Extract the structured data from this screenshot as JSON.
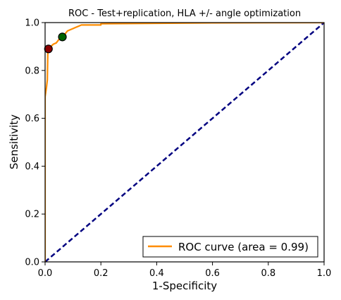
{
  "chart_data": {
    "type": "line",
    "title": "ROC - Test+replication, HLA +/- angle optimization",
    "xlabel": "1-Specificity",
    "ylabel": "Sensitivity",
    "xlim": [
      0.0,
      1.0
    ],
    "ylim": [
      0.0,
      1.0
    ],
    "xticks": [
      "0.0",
      "0.2",
      "0.4",
      "0.6",
      "0.8",
      "1.0"
    ],
    "yticks": [
      "0.0",
      "0.2",
      "0.4",
      "0.6",
      "0.8",
      "1.0"
    ],
    "grid": false,
    "legend_position": "lower-right",
    "series": [
      {
        "name": "ROC curve (area = 0.99)",
        "color": "#ff8c00",
        "style": "solid",
        "points": [
          [
            0.0,
            0.0
          ],
          [
            0.0,
            0.69
          ],
          [
            0.005,
            0.73
          ],
          [
            0.008,
            0.76
          ],
          [
            0.01,
            0.89
          ],
          [
            0.02,
            0.9
          ],
          [
            0.03,
            0.91
          ],
          [
            0.04,
            0.915
          ],
          [
            0.05,
            0.93
          ],
          [
            0.06,
            0.94
          ],
          [
            0.07,
            0.95
          ],
          [
            0.08,
            0.965
          ],
          [
            0.09,
            0.97
          ],
          [
            0.1,
            0.975
          ],
          [
            0.11,
            0.98
          ],
          [
            0.12,
            0.985
          ],
          [
            0.13,
            0.99
          ],
          [
            0.2,
            0.99
          ],
          [
            0.2,
            0.995
          ],
          [
            0.4,
            0.997
          ],
          [
            0.6,
            0.999
          ],
          [
            1.0,
            1.0
          ]
        ]
      },
      {
        "color": "#000080",
        "style": "dashed",
        "points": [
          [
            0.0,
            0.0
          ],
          [
            1.0,
            1.0
          ]
        ]
      }
    ],
    "markers": [
      {
        "x": 0.012,
        "y": 0.89,
        "color": "#8b0000"
      },
      {
        "x": 0.062,
        "y": 0.94,
        "color": "#006400"
      }
    ]
  }
}
